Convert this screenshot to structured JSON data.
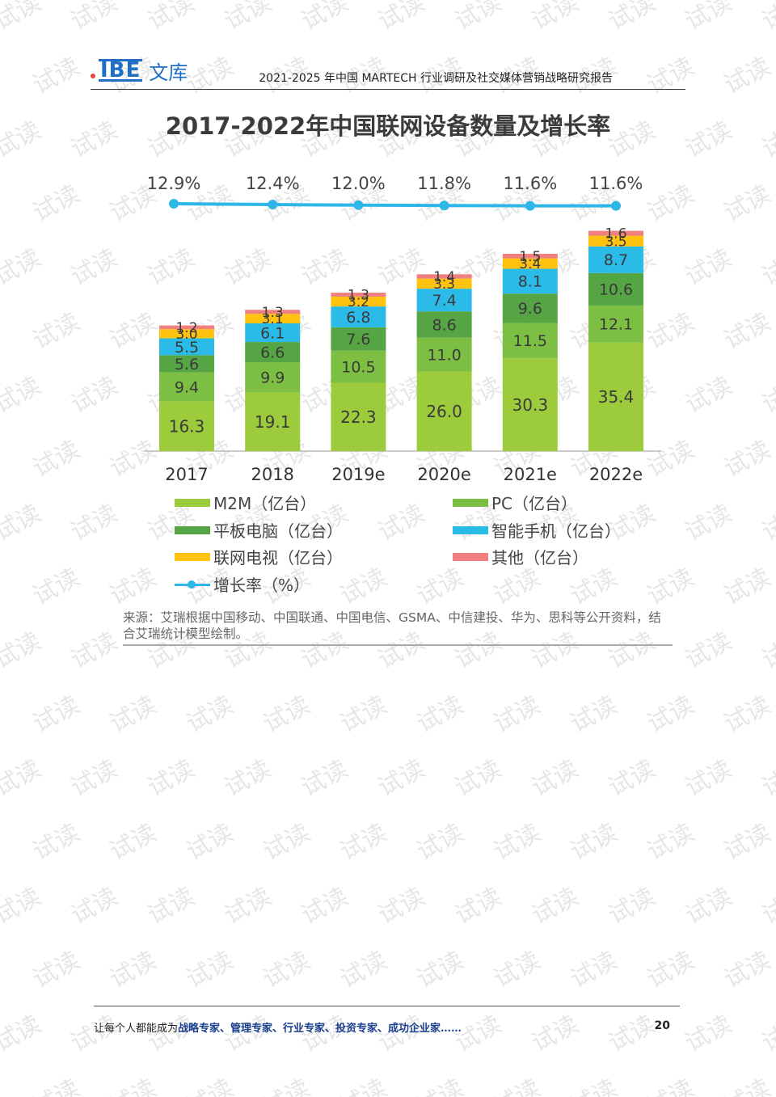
{
  "watermark": "试读",
  "header": {
    "logo_mark": "IBE",
    "logo_text": "文库",
    "title": "2021-2025 年中国 MARTECH 行业调研及社交媒体营销战略研究报告"
  },
  "chart_title": "2017-2022年中国联网设备数量及增长率",
  "chart_data": {
    "type": "bar",
    "stacked": true,
    "title": "2017-2022年中国联网设备数量及增长率",
    "categories": [
      "2017",
      "2018",
      "2019e",
      "2020e",
      "2021e",
      "2022e"
    ],
    "series": [
      {
        "name": "M2M（亿台）",
        "color": "#9ccb3b",
        "values": [
          16.3,
          19.1,
          22.3,
          26.0,
          30.3,
          35.4
        ]
      },
      {
        "name": "PC（亿台）",
        "color": "#7cbf42",
        "values": [
          9.4,
          9.9,
          10.5,
          11.0,
          11.5,
          12.1
        ]
      },
      {
        "name": "平板电脑（亿台）",
        "color": "#56a544",
        "values": [
          5.6,
          6.6,
          7.6,
          8.6,
          9.6,
          10.6
        ]
      },
      {
        "name": "智能手机（亿台）",
        "color": "#2bbbe9",
        "values": [
          5.5,
          6.1,
          6.8,
          7.4,
          8.1,
          8.7
        ]
      },
      {
        "name": "联网电视（亿台）",
        "color": "#ffc20e",
        "values": [
          3.0,
          3.1,
          3.2,
          3.3,
          3.4,
          3.5
        ]
      },
      {
        "name": "其他（亿台）",
        "color": "#f08080",
        "values": [
          1.2,
          1.3,
          1.3,
          1.4,
          1.5,
          1.6
        ]
      }
    ],
    "growth_rate": {
      "name": "增长率（%）",
      "color": "#2fb6e8",
      "values": [
        12.9,
        12.4,
        12.0,
        11.8,
        11.6,
        11.6
      ],
      "labels": [
        "12.9%",
        "12.4%",
        "12.0%",
        "11.8%",
        "11.6%",
        "11.6%"
      ]
    },
    "ylim": [
      0,
      80
    ]
  },
  "legend": {
    "m2m": "M2M（亿台）",
    "pc": "PC（亿台）",
    "tablet": "平板电脑（亿台）",
    "phone": "智能手机（亿台）",
    "tv": "联网电视（亿台）",
    "other": "其他（亿台）",
    "growth": "增长率（%）"
  },
  "colors": {
    "m2m": "#9ccb3b",
    "pc": "#7cbf42",
    "tablet": "#56a544",
    "phone": "#2bbbe9",
    "tv": "#ffc20e",
    "other": "#f08080",
    "growth": "#2fb6e8"
  },
  "source": "来源：艾瑞根据中国移动、中国联通、中国电信、GSMA、中信建投、华为、思科等公开资料，结合艾瑞统计模型绘制。",
  "footer": {
    "prefix": "让每个人都能成为",
    "highlight": "战略专家、管理专家、行业专家、投资专家、成功企业家……",
    "page_number": "20"
  }
}
